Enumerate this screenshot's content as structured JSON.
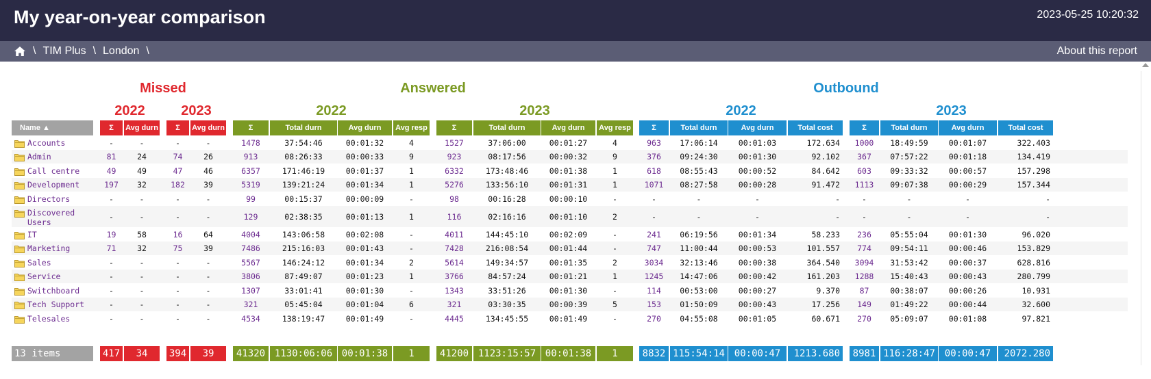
{
  "header": {
    "title": "My year-on-year comparison",
    "timestamp": "2023-05-25 10:20:32"
  },
  "breadcrumb": {
    "home_icon": "home-icon",
    "items": [
      "TIM Plus",
      "London"
    ],
    "separator": "\\",
    "about": "About this report"
  },
  "colors": {
    "title_bar": "#2a2a45",
    "breadcrumb_bar": "#5b5d75",
    "missed": "#e0282e",
    "answered": "#7b9a23",
    "outbound": "#1f8fcf",
    "name_column": "#a3a3a3",
    "link": "#6b2a8f"
  },
  "report": {
    "name_header": "Name ▲",
    "groups": [
      {
        "key": "missed",
        "label": "Missed",
        "years": [
          {
            "year": "2022",
            "columns": [
              "Σ",
              "Avg durn"
            ]
          },
          {
            "year": "2023",
            "columns": [
              "Σ",
              "Avg durn"
            ]
          }
        ]
      },
      {
        "key": "answered",
        "label": "Answered",
        "years": [
          {
            "year": "2022",
            "columns": [
              "Σ",
              "Total durn",
              "Avg durn",
              "Avg resp"
            ]
          },
          {
            "year": "2023",
            "columns": [
              "Σ",
              "Total durn",
              "Avg durn",
              "Avg resp"
            ]
          }
        ]
      },
      {
        "key": "outbound",
        "label": "Outbound",
        "years": [
          {
            "year": "2022",
            "columns": [
              "Σ",
              "Total durn",
              "Avg durn",
              "Total cost"
            ]
          },
          {
            "year": "2023",
            "columns": [
              "Σ",
              "Total durn",
              "Avg durn",
              "Total cost"
            ]
          }
        ]
      }
    ],
    "rows": [
      {
        "name": "Accounts",
        "cells": [
          "-",
          "-",
          "-",
          "-",
          "1478",
          "37:54:46",
          "00:01:32",
          "4",
          "1527",
          "37:06:00",
          "00:01:27",
          "4",
          "963",
          "17:06:14",
          "00:01:03",
          "172.634",
          "1000",
          "18:49:59",
          "00:01:07",
          "322.403"
        ]
      },
      {
        "name": "Admin",
        "cells": [
          "81",
          "24",
          "74",
          "26",
          "913",
          "08:26:33",
          "00:00:33",
          "9",
          "923",
          "08:17:56",
          "00:00:32",
          "9",
          "376",
          "09:24:30",
          "00:01:30",
          "92.102",
          "367",
          "07:57:22",
          "00:01:18",
          "134.419"
        ]
      },
      {
        "name": "Call centre",
        "cells": [
          "49",
          "49",
          "47",
          "46",
          "6357",
          "171:46:19",
          "00:01:37",
          "1",
          "6332",
          "173:48:46",
          "00:01:38",
          "1",
          "618",
          "08:55:43",
          "00:00:52",
          "84.642",
          "603",
          "09:33:32",
          "00:00:57",
          "157.298"
        ]
      },
      {
        "name": "Development",
        "cells": [
          "197",
          "32",
          "182",
          "39",
          "5319",
          "139:21:24",
          "00:01:34",
          "1",
          "5276",
          "133:56:10",
          "00:01:31",
          "1",
          "1071",
          "08:27:58",
          "00:00:28",
          "91.472",
          "1113",
          "09:07:38",
          "00:00:29",
          "157.344"
        ]
      },
      {
        "name": "Directors",
        "cells": [
          "-",
          "-",
          "-",
          "-",
          "99",
          "00:15:37",
          "00:00:09",
          "-",
          "98",
          "00:16:28",
          "00:00:10",
          "-",
          "-",
          "-",
          "-",
          "-",
          "-",
          "-",
          "-",
          "-"
        ]
      },
      {
        "name": "Discovered Users",
        "cells": [
          "-",
          "-",
          "-",
          "-",
          "129",
          "02:38:35",
          "00:01:13",
          "1",
          "116",
          "02:16:16",
          "00:01:10",
          "2",
          "-",
          "-",
          "-",
          "-",
          "-",
          "-",
          "-",
          "-"
        ]
      },
      {
        "name": "IT",
        "cells": [
          "19",
          "58",
          "16",
          "64",
          "4004",
          "143:06:58",
          "00:02:08",
          "-",
          "4011",
          "144:45:10",
          "00:02:09",
          "-",
          "241",
          "06:19:56",
          "00:01:34",
          "58.233",
          "236",
          "05:55:04",
          "00:01:30",
          "96.020"
        ]
      },
      {
        "name": "Marketing",
        "cells": [
          "71",
          "32",
          "75",
          "39",
          "7486",
          "215:16:03",
          "00:01:43",
          "-",
          "7428",
          "216:08:54",
          "00:01:44",
          "-",
          "747",
          "11:00:44",
          "00:00:53",
          "101.557",
          "774",
          "09:54:11",
          "00:00:46",
          "153.829"
        ]
      },
      {
        "name": "Sales",
        "cells": [
          "-",
          "-",
          "-",
          "-",
          "5567",
          "146:24:12",
          "00:01:34",
          "2",
          "5614",
          "149:34:57",
          "00:01:35",
          "2",
          "3034",
          "32:13:46",
          "00:00:38",
          "364.540",
          "3094",
          "31:53:42",
          "00:00:37",
          "628.816"
        ]
      },
      {
        "name": "Service",
        "cells": [
          "-",
          "-",
          "-",
          "-",
          "3806",
          "87:49:07",
          "00:01:23",
          "1",
          "3766",
          "84:57:24",
          "00:01:21",
          "1",
          "1245",
          "14:47:06",
          "00:00:42",
          "161.203",
          "1288",
          "15:40:43",
          "00:00:43",
          "280.799"
        ]
      },
      {
        "name": "Switchboard",
        "cells": [
          "-",
          "-",
          "-",
          "-",
          "1307",
          "33:01:41",
          "00:01:30",
          "-",
          "1343",
          "33:51:26",
          "00:01:30",
          "-",
          "114",
          "00:53:00",
          "00:00:27",
          "9.370",
          "87",
          "00:38:07",
          "00:00:26",
          "10.931"
        ]
      },
      {
        "name": "Tech Support",
        "cells": [
          "-",
          "-",
          "-",
          "-",
          "321",
          "05:45:04",
          "00:01:04",
          "6",
          "321",
          "03:30:35",
          "00:00:39",
          "5",
          "153",
          "01:50:09",
          "00:00:43",
          "17.256",
          "149",
          "01:49:22",
          "00:00:44",
          "32.600"
        ]
      },
      {
        "name": "Telesales",
        "cells": [
          "-",
          "-",
          "-",
          "-",
          "4534",
          "138:19:47",
          "00:01:49",
          "-",
          "4445",
          "134:45:55",
          "00:01:49",
          "-",
          "270",
          "04:55:08",
          "00:01:05",
          "60.671",
          "270",
          "05:09:07",
          "00:01:08",
          "97.821"
        ]
      }
    ],
    "totals": {
      "label": "13 items",
      "cells": [
        "417",
        "34",
        "394",
        "39",
        "41320",
        "1130:06:06",
        "00:01:38",
        "1",
        "41200",
        "1123:15:57",
        "00:01:38",
        "1",
        "8832",
        "115:54:14",
        "00:00:47",
        "1213.680",
        "8981",
        "116:28:47",
        "00:00:47",
        "2072.280"
      ]
    }
  }
}
